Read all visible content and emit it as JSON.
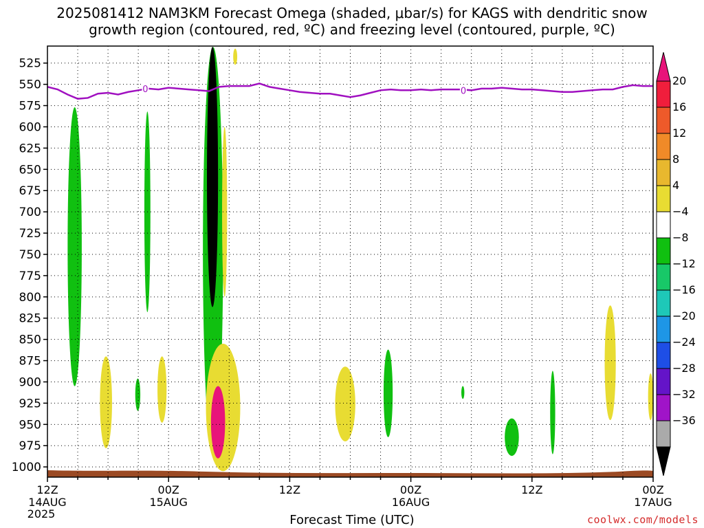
{
  "chart_data": {
    "type": "heatmap",
    "title_line1": "2025081412 NAM3KM Forecast Omega (shaded, μbar/s) for KAGS with dendritic snow",
    "title_line2": "growth region (contoured, red, ºC) and freezing level (contoured, purple, ºC)",
    "xlabel": "Forecast Time (UTC)",
    "ylabel": "",
    "y_ticks": [
      525,
      550,
      575,
      600,
      625,
      650,
      675,
      700,
      725,
      750,
      775,
      800,
      825,
      850,
      875,
      900,
      925,
      950,
      975,
      1000
    ],
    "x_ticks": [
      {
        "hour": 0,
        "label": "12Z",
        "sub": "14AUG",
        "sub2": "2025"
      },
      {
        "hour": 12,
        "label": "00Z",
        "sub": "15AUG",
        "sub2": ""
      },
      {
        "hour": 24,
        "label": "12Z",
        "sub": "",
        "sub2": ""
      },
      {
        "hour": 36,
        "label": "00Z",
        "sub": "16AUG",
        "sub2": ""
      },
      {
        "hour": 48,
        "label": "12Z",
        "sub": "",
        "sub2": ""
      },
      {
        "hour": 60,
        "label": "00Z",
        "sub": "17AUG",
        "sub2": ""
      }
    ],
    "x_range_hours": [
      0,
      60
    ],
    "y_range_mb": [
      505,
      1012
    ],
    "grid": true,
    "colorbar": {
      "labels": [
        "20",
        "16",
        "12",
        "8",
        "4",
        "−4",
        "−8",
        "−12",
        "−16",
        "−20",
        "−24",
        "−28",
        "−32",
        "−36"
      ],
      "colors": [
        "#e8147a",
        "#f01e3c",
        "#ee5a2a",
        "#f08a28",
        "#e8b82e",
        "#e8dc32",
        "#ffffff",
        "#10c010",
        "#18c868",
        "#1ec8b8",
        "#1e96e6",
        "#1e4ee6",
        "#6414c8",
        "#a014c8",
        "#aaaaaa",
        "#000000"
      ]
    },
    "freezing_level": {
      "label": "0",
      "hours": [
        0,
        1,
        2,
        3,
        4,
        5,
        6,
        7,
        8,
        9,
        10,
        11,
        12,
        13,
        14,
        15,
        16,
        17,
        18,
        19,
        20,
        21,
        22,
        23,
        24,
        25,
        26,
        27,
        28,
        29,
        30,
        31,
        32,
        33,
        34,
        35,
        36,
        37,
        38,
        39,
        40,
        41,
        42,
        43,
        44,
        45,
        46,
        47,
        48,
        49,
        50,
        51,
        52,
        53,
        54,
        55,
        56,
        57,
        58,
        59,
        60
      ],
      "mb": [
        553,
        556,
        562,
        567,
        566,
        561,
        560,
        562,
        559,
        557,
        555,
        556,
        554,
        555,
        556,
        557,
        558,
        553,
        552,
        552,
        552,
        549,
        553,
        555,
        557,
        559,
        560,
        561,
        561,
        563,
        565,
        563,
        560,
        557,
        556,
        557,
        557,
        556,
        557,
        556,
        556,
        556,
        557,
        555,
        555,
        554,
        555,
        556,
        556,
        557,
        558,
        559,
        559,
        558,
        557,
        556,
        556,
        553,
        551,
        552,
        552
      ]
    },
    "omega_regions": [
      {
        "value": -6,
        "hours": [
          2.0,
          3.4
        ],
        "mb": [
          577,
          905
        ]
      },
      {
        "value": -6,
        "hours": [
          9.6,
          10.2
        ],
        "mb": [
          582,
          818
        ]
      },
      {
        "value": -6,
        "hours": [
          8.7,
          9.2
        ],
        "mb": [
          896,
          934
        ]
      },
      {
        "value": -6,
        "hours": [
          15.4,
          17.4
        ],
        "mb": [
          506,
          985
        ]
      },
      {
        "value": -36,
        "hours": [
          15.8,
          16.9
        ],
        "mb": [
          506,
          812
        ]
      },
      {
        "value": -6,
        "hours": [
          33.3,
          34.2
        ],
        "mb": [
          862,
          965
        ]
      },
      {
        "value": -6,
        "hours": [
          49.8,
          50.3
        ],
        "mb": [
          887,
          985
        ]
      },
      {
        "value": -6,
        "hours": [
          45.3,
          46.7
        ],
        "mb": [
          943,
          987
        ]
      },
      {
        "value": -6,
        "hours": [
          41.0,
          41.3
        ],
        "mb": [
          905,
          920
        ]
      },
      {
        "value": 6,
        "hours": [
          5.2,
          6.4
        ],
        "mb": [
          870,
          978
        ]
      },
      {
        "value": 6,
        "hours": [
          10.9,
          11.8
        ],
        "mb": [
          870,
          948
        ]
      },
      {
        "value": 6,
        "hours": [
          15.7,
          19.1
        ],
        "mb": [
          855,
          1005
        ]
      },
      {
        "value": 20,
        "hours": [
          16.2,
          17.6
        ],
        "mb": [
          905,
          990
        ]
      },
      {
        "value": 6,
        "hours": [
          28.5,
          30.5
        ],
        "mb": [
          882,
          970
        ]
      },
      {
        "value": 6,
        "hours": [
          55.2,
          56.3
        ],
        "mb": [
          810,
          945
        ]
      },
      {
        "value": 6,
        "hours": [
          59.5,
          60.0
        ],
        "mb": [
          890,
          945
        ]
      },
      {
        "value": 6,
        "hours": [
          18.4,
          18.8
        ],
        "mb": [
          508,
          527
        ]
      },
      {
        "value": 6,
        "hours": [
          17.3,
          17.8
        ],
        "mb": [
          600,
          800
        ]
      }
    ]
  },
  "credit": "coolwx.com/models"
}
